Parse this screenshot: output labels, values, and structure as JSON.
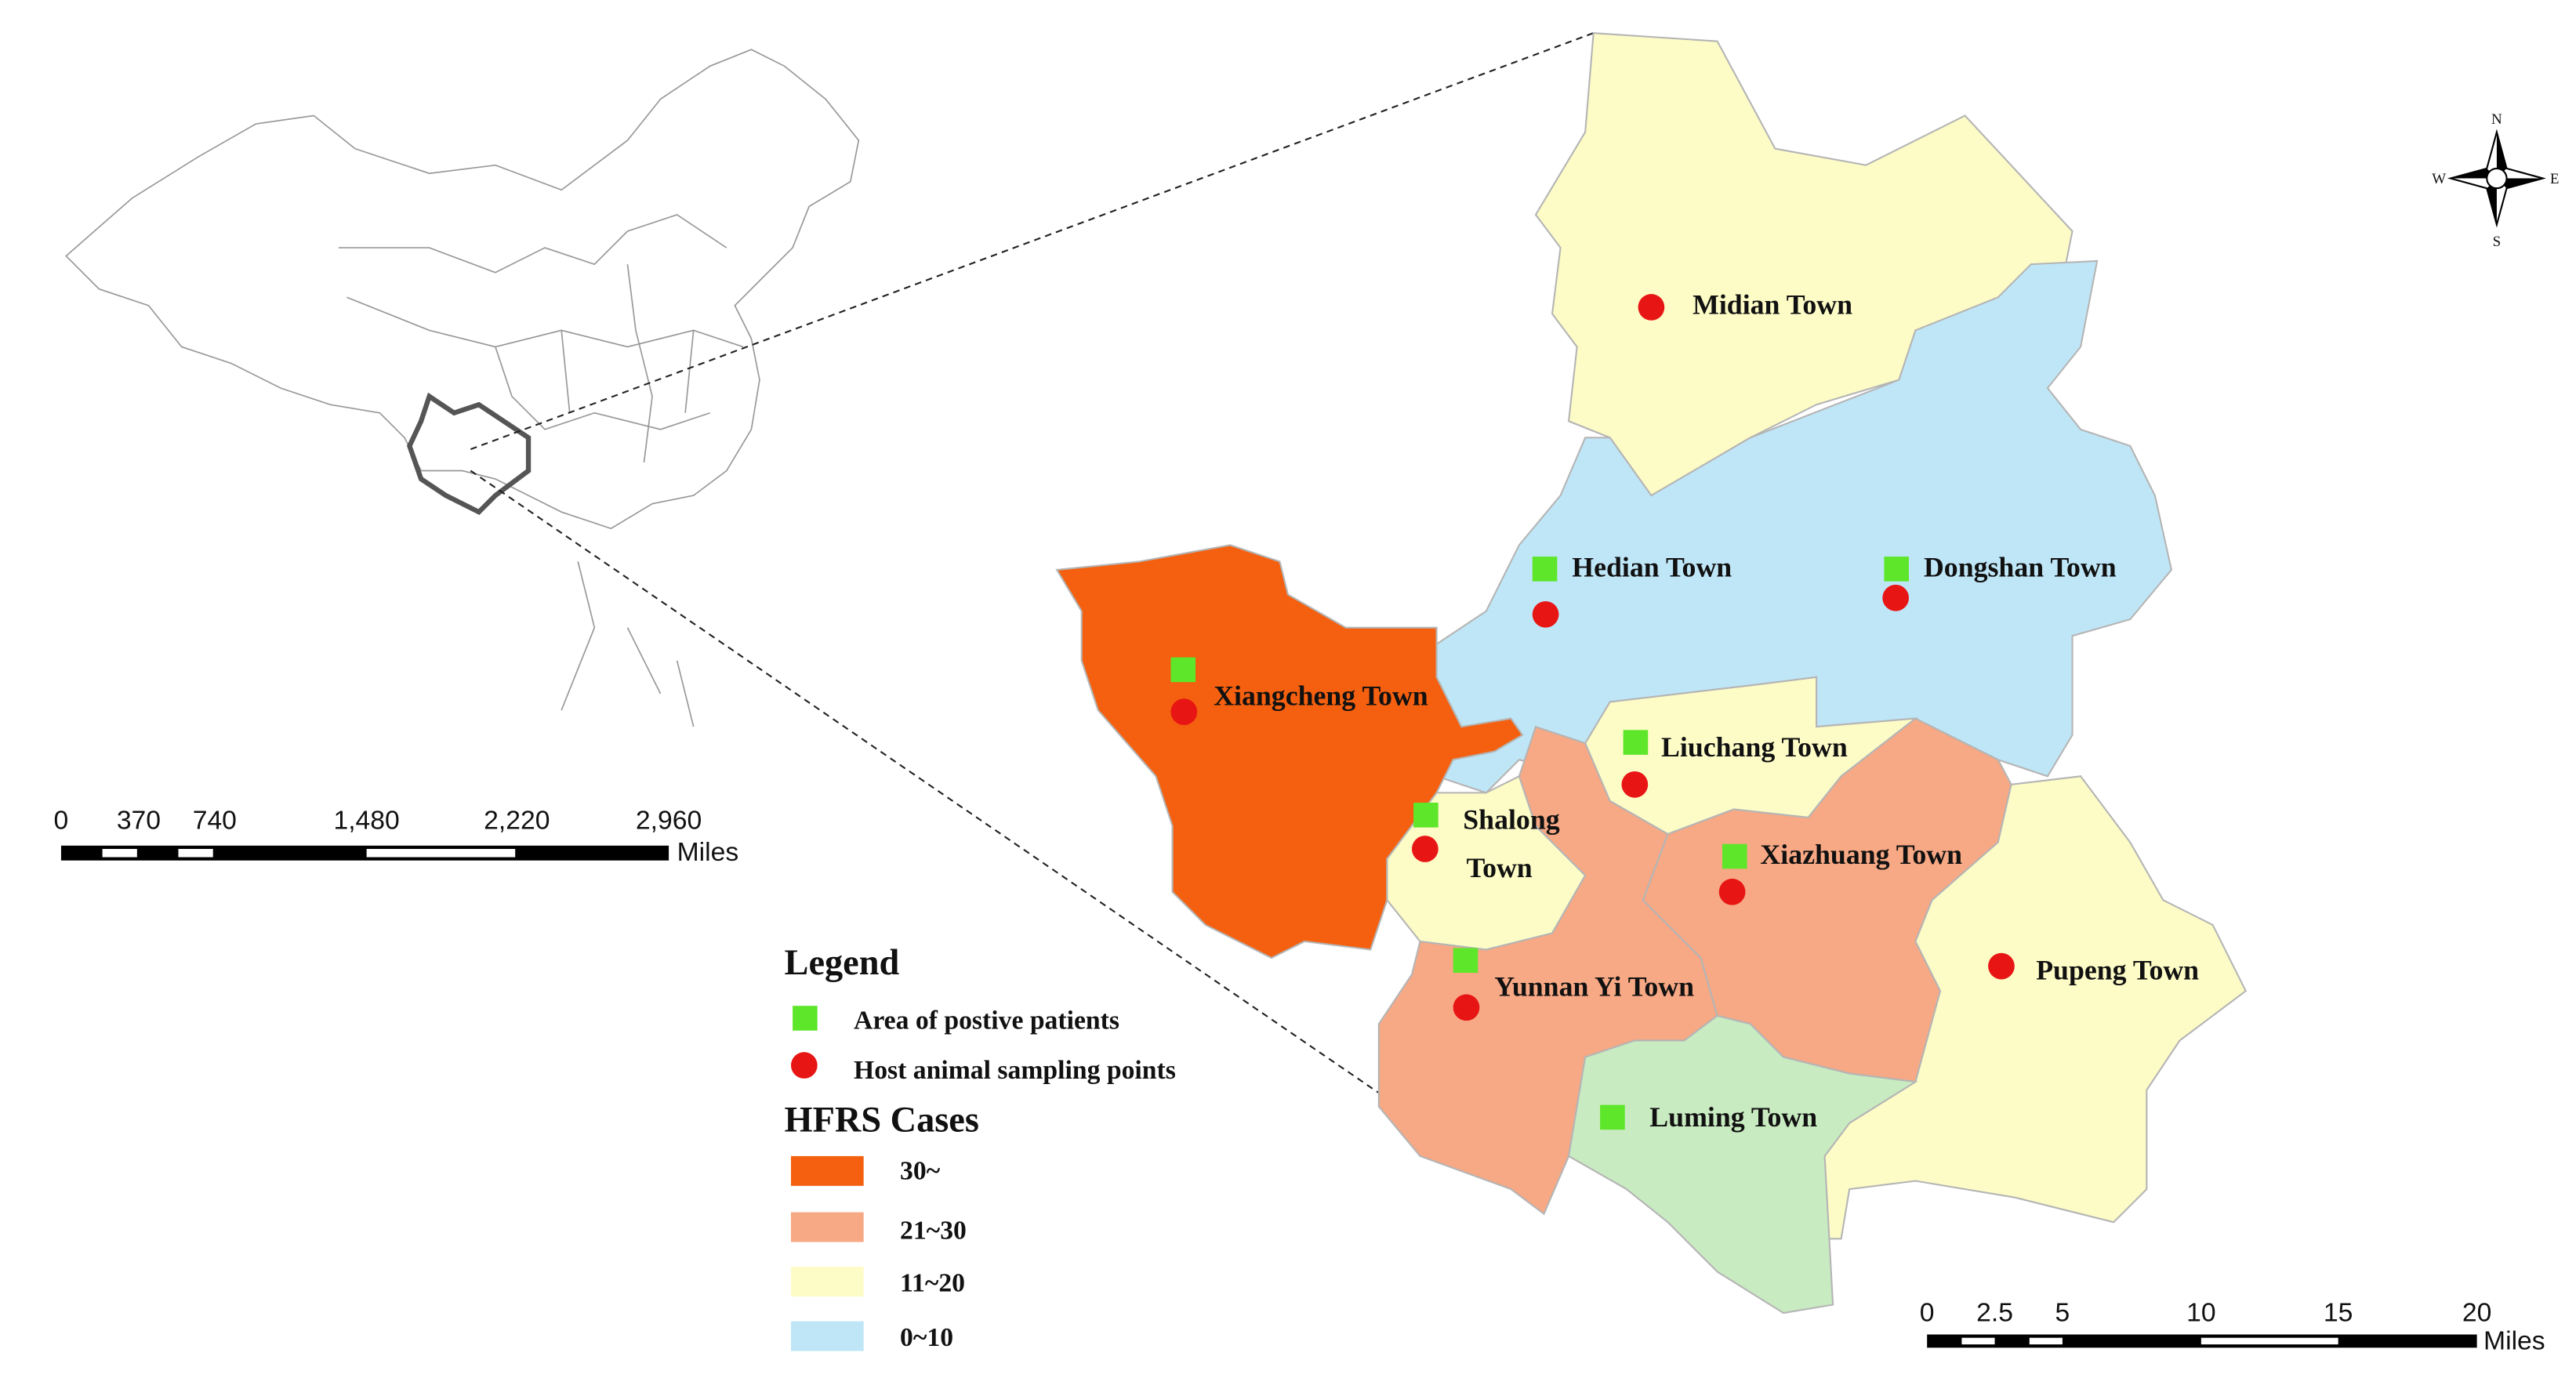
{
  "legend": {
    "title": "Legend",
    "items": [
      {
        "label": "Area of postive patients",
        "color": "#5ee62a"
      },
      {
        "label": "Host animal sampling points",
        "color": "#e81515"
      }
    ],
    "cases_title": "HFRS Cases",
    "classes": [
      {
        "label": "30~",
        "color": "#f4600f"
      },
      {
        "label": "21~30",
        "color": "#f7a884"
      },
      {
        "label": "11~20",
        "color": "#fdfcc6"
      },
      {
        "label": "0~10",
        "color": "#bfe6f7"
      }
    ]
  },
  "towns": [
    {
      "lines": [
        "Midian Town"
      ]
    },
    {
      "lines": [
        "Hedian Town"
      ]
    },
    {
      "lines": [
        "Dongshan Town"
      ]
    },
    {
      "lines": [
        "Xiangcheng Town"
      ]
    },
    {
      "lines": [
        "Liuchang Town"
      ]
    },
    {
      "lines": [
        "Shalong",
        "Town"
      ]
    },
    {
      "lines": [
        "Xiazhuang Town"
      ]
    },
    {
      "lines": [
        "Yunnan Yi Town"
      ]
    },
    {
      "lines": [
        "Pupeng Town"
      ]
    },
    {
      "lines": [
        "Luming Town"
      ]
    }
  ],
  "inset_scale": {
    "ticks": [
      "0",
      "370",
      "740",
      "1,480",
      "2,220",
      "2,960"
    ],
    "unit": "Miles"
  },
  "main_scale": {
    "ticks": [
      "0",
      "2.5",
      "5",
      "10",
      "15",
      "20"
    ],
    "unit": "Miles"
  },
  "compass": {
    "n": "N",
    "s": "S",
    "e": "E",
    "w": "W"
  }
}
